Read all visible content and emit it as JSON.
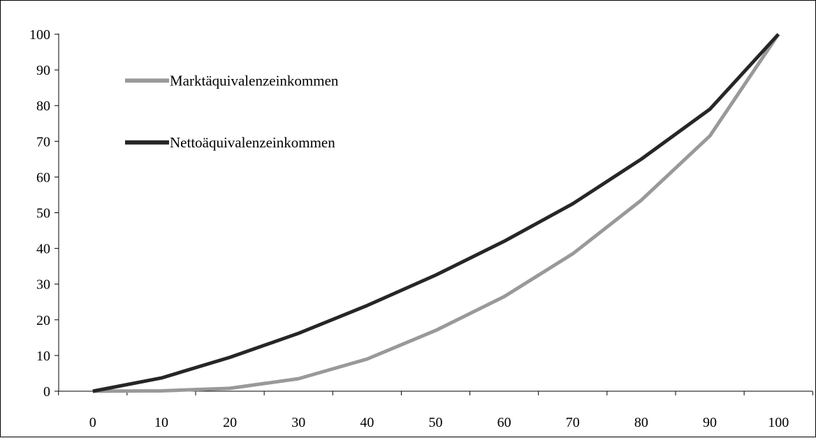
{
  "chart_data": {
    "type": "line",
    "title": "",
    "xlabel": "",
    "ylabel": "",
    "x": [
      0,
      10,
      20,
      30,
      40,
      50,
      60,
      70,
      80,
      90,
      100
    ],
    "xlim": [
      0,
      100
    ],
    "ylim": [
      0,
      100
    ],
    "x_ticks": [
      0,
      10,
      20,
      30,
      40,
      50,
      60,
      70,
      80,
      90,
      100
    ],
    "y_ticks": [
      0,
      10,
      20,
      30,
      40,
      50,
      60,
      70,
      80,
      90,
      100
    ],
    "grid": false,
    "legend_position": "top-left",
    "series": [
      {
        "name": "Marktäquivalenzeinkommen",
        "color": "#999999",
        "values": [
          0,
          0.1,
          0.8,
          3.5,
          9,
          17,
          26.5,
          38.5,
          53.5,
          71.5,
          100
        ]
      },
      {
        "name": "Nettoäquivalenzeinkommen",
        "color": "#262626",
        "values": [
          0,
          3.7,
          9.5,
          16.2,
          24,
          32.5,
          42,
          52.5,
          65,
          79,
          100
        ]
      }
    ]
  }
}
